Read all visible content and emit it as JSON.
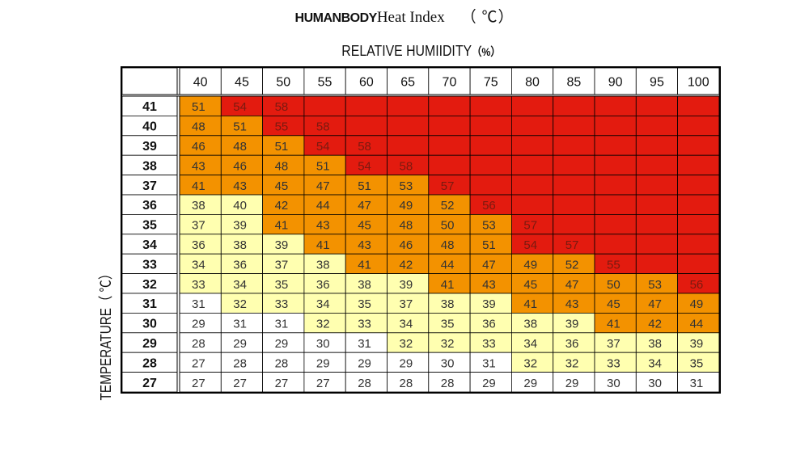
{
  "chart_data": {
    "type": "heatmap",
    "title_part1": "HUMANBODY",
    "title_part2": "Heat Index",
    "title_unit": "（ ℃）",
    "xlabel": "RELATIVE HUMIIDITY",
    "xlabel_unit": "（%）",
    "ylabel": "TEMPERATURE（ ℃）",
    "x_categories": [
      "40",
      "45",
      "50",
      "55",
      "60",
      "65",
      "70",
      "75",
      "80",
      "85",
      "90",
      "95",
      "100"
    ],
    "y_categories": [
      "41",
      "40",
      "39",
      "38",
      "37",
      "36",
      "35",
      "34",
      "33",
      "32",
      "31",
      "30",
      "29",
      "28",
      "27"
    ],
    "values": [
      [
        51,
        54,
        58,
        null,
        null,
        null,
        null,
        null,
        null,
        null,
        null,
        null,
        null
      ],
      [
        48,
        51,
        55,
        58,
        null,
        null,
        null,
        null,
        null,
        null,
        null,
        null,
        null
      ],
      [
        46,
        48,
        51,
        54,
        58,
        null,
        null,
        null,
        null,
        null,
        null,
        null,
        null
      ],
      [
        43,
        46,
        48,
        51,
        54,
        58,
        null,
        null,
        null,
        null,
        null,
        null,
        null
      ],
      [
        41,
        43,
        45,
        47,
        51,
        53,
        57,
        null,
        null,
        null,
        null,
        null,
        null
      ],
      [
        38,
        40,
        42,
        44,
        47,
        49,
        52,
        56,
        null,
        null,
        null,
        null,
        null
      ],
      [
        37,
        39,
        41,
        43,
        45,
        48,
        50,
        53,
        57,
        null,
        null,
        null,
        null
      ],
      [
        36,
        38,
        39,
        41,
        43,
        46,
        48,
        51,
        54,
        57,
        null,
        null,
        null
      ],
      [
        34,
        36,
        37,
        38,
        41,
        42,
        44,
        47,
        49,
        52,
        55,
        null,
        null
      ],
      [
        33,
        34,
        35,
        36,
        38,
        39,
        41,
        43,
        45,
        47,
        50,
        53,
        56
      ],
      [
        31,
        32,
        33,
        34,
        35,
        37,
        38,
        39,
        41,
        43,
        45,
        47,
        49
      ],
      [
        29,
        31,
        31,
        32,
        33,
        34,
        35,
        36,
        38,
        39,
        41,
        42,
        44
      ],
      [
        28,
        29,
        29,
        30,
        31,
        32,
        32,
        33,
        34,
        36,
        37,
        38,
        39
      ],
      [
        27,
        28,
        28,
        29,
        29,
        29,
        30,
        31,
        32,
        32,
        33,
        34,
        35
      ],
      [
        27,
        27,
        27,
        27,
        28,
        28,
        28,
        29,
        29,
        29,
        30,
        30,
        31
      ]
    ],
    "color_scale": [
      {
        "min": 0,
        "max": 31,
        "color": "#ffffff"
      },
      {
        "min": 32,
        "max": 40,
        "color": "#ffffb0"
      },
      {
        "min": 41,
        "max": 53,
        "color": "#f39200"
      },
      {
        "min": 54,
        "max": 99,
        "color": "#e31b0f"
      }
    ],
    "empty_color": "#e31b0f",
    "text_color": "#333333",
    "high_text_color": "#7a1a10"
  }
}
